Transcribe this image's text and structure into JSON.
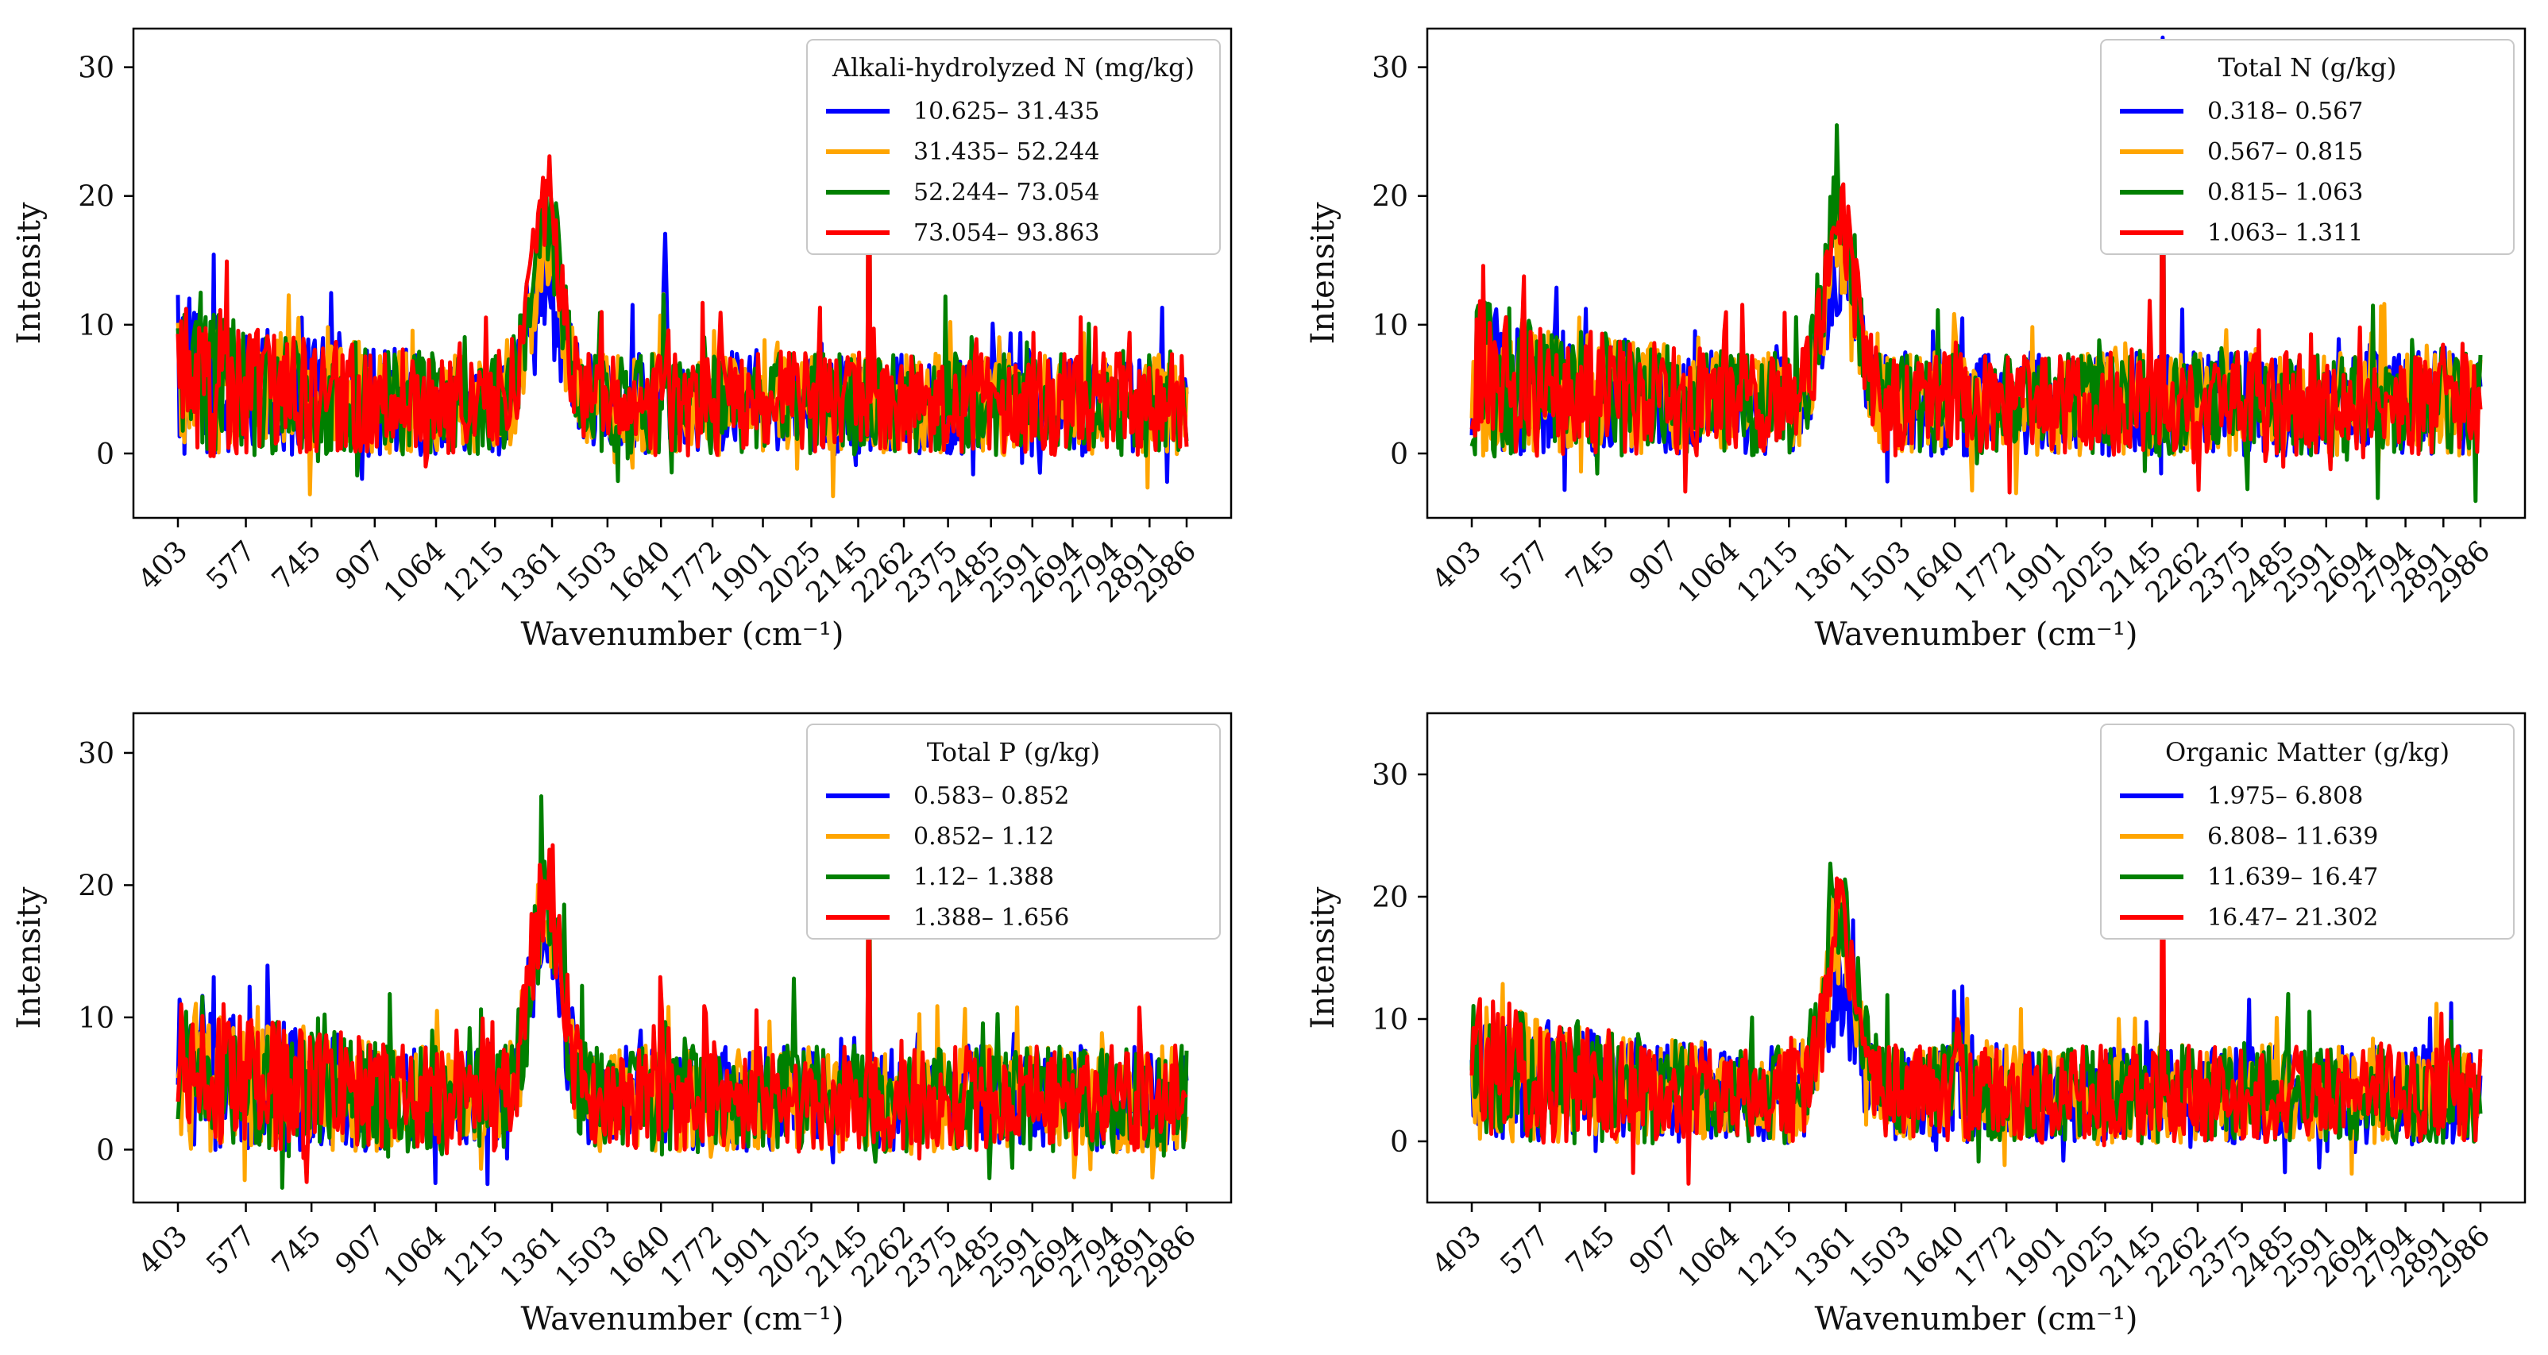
{
  "figure": {
    "xlabel": "Wavenumber (cm⁻¹)",
    "ylabel": "Intensity"
  },
  "chart_data": [
    {
      "type": "line",
      "title": "",
      "xlabel": "Wavenumber (cm⁻¹)",
      "ylabel": "Intensity",
      "xlim": [
        403,
        2986
      ],
      "ylim": [
        -5,
        33
      ],
      "xticks": [
        403,
        577,
        745,
        907,
        1064,
        1215,
        1361,
        1503,
        1640,
        1772,
        1901,
        2025,
        2145,
        2262,
        2375,
        2485,
        2591,
        2694,
        2794,
        2891,
        2986
      ],
      "yticks": [
        0,
        10,
        20,
        30
      ],
      "legend_title": "Alkali-hydrolyzed N (mg/kg)",
      "legend_position": "top-right",
      "base_max": 9.5,
      "series": [
        {
          "name": "10.625– 31.435",
          "color": "#0000ff",
          "seed": 11,
          "hump": 14.2,
          "spike": 6.5
        },
        {
          "name": "31.435– 52.244",
          "color": "#ffa500",
          "seed": 23,
          "hump": 18.0,
          "spike": 6.8
        },
        {
          "name": "52.244– 73.054",
          "color": "#008000",
          "seed": 37,
          "hump": 20.5,
          "spike": 31.5
        },
        {
          "name": "73.054– 93.863",
          "color": "#ff0000",
          "seed": 51,
          "hump": 22.0,
          "spike": 31.0
        }
      ]
    },
    {
      "type": "line",
      "title": "",
      "xlabel": "Wavenumber (cm⁻¹)",
      "ylabel": "Intensity",
      "xlim": [
        403,
        2986
      ],
      "ylim": [
        -5,
        33
      ],
      "xticks": [
        403,
        577,
        745,
        907,
        1064,
        1215,
        1361,
        1503,
        1640,
        1772,
        1901,
        2025,
        2145,
        2262,
        2375,
        2485,
        2591,
        2694,
        2794,
        2891,
        2986
      ],
      "yticks": [
        0,
        10,
        20,
        30
      ],
      "legend_title": "Total N (g/kg)",
      "legend_position": "top-right",
      "base_max": 9.5,
      "series": [
        {
          "name": "0.318– 0.567",
          "color": "#0000ff",
          "seed": 13,
          "hump": 17.0,
          "spike": 32.3
        },
        {
          "name": "0.567– 0.815",
          "color": "#ffa500",
          "seed": 29,
          "hump": 18.5,
          "spike": 31.5
        },
        {
          "name": "0.815– 1.063",
          "color": "#008000",
          "seed": 41,
          "hump": 22.0,
          "spike": 32.0
        },
        {
          "name": "1.063– 1.311",
          "color": "#ff0000",
          "seed": 57,
          "hump": 19.5,
          "spike": 27.5
        }
      ]
    },
    {
      "type": "line",
      "title": "",
      "xlabel": "Wavenumber (cm⁻¹)",
      "ylabel": "Intensity",
      "xlim": [
        403,
        2986
      ],
      "ylim": [
        -4,
        33
      ],
      "xticks": [
        403,
        577,
        745,
        907,
        1064,
        1215,
        1361,
        1503,
        1640,
        1772,
        1901,
        2025,
        2145,
        2262,
        2375,
        2485,
        2591,
        2694,
        2794,
        2891,
        2986
      ],
      "yticks": [
        0,
        10,
        20,
        30
      ],
      "legend_title": "Total P (g/kg)",
      "legend_position": "top-right",
      "base_max": 9.5,
      "series": [
        {
          "name": "0.583– 0.852",
          "color": "#0000ff",
          "seed": 17,
          "hump": 19.0,
          "spike": 8.0
        },
        {
          "name": "0.852– 1.12",
          "color": "#ffa500",
          "seed": 31,
          "hump": 20.5,
          "spike": 32.0
        },
        {
          "name": "1.12– 1.388",
          "color": "#008000",
          "seed": 43,
          "hump": 20.0,
          "spike": 30.0
        },
        {
          "name": "1.388– 1.656",
          "color": "#ff0000",
          "seed": 59,
          "hump": 21.5,
          "spike": 23.0
        }
      ]
    },
    {
      "type": "line",
      "title": "",
      "xlabel": "Wavenumber (cm⁻¹)",
      "ylabel": "Intensity",
      "xlim": [
        403,
        2986
      ],
      "ylim": [
        -5,
        35
      ],
      "xticks": [
        403,
        577,
        745,
        907,
        1064,
        1215,
        1361,
        1503,
        1640,
        1772,
        1901,
        2025,
        2145,
        2262,
        2375,
        2485,
        2591,
        2694,
        2794,
        2891,
        2986
      ],
      "yticks": [
        0,
        10,
        20,
        30
      ],
      "legend_title": "Organic Matter (g/kg)",
      "legend_position": "top-right",
      "base_max": 9.5,
      "series": [
        {
          "name": "1.975– 6.808",
          "color": "#0000ff",
          "seed": 19,
          "hump": 14.5,
          "spike": 6.5
        },
        {
          "name": "6.808– 11.639",
          "color": "#ffa500",
          "seed": 33,
          "hump": 18.5,
          "spike": 8.5
        },
        {
          "name": "11.639– 16.47",
          "color": "#008000",
          "seed": 47,
          "hump": 21.5,
          "spike": 7.5
        },
        {
          "name": "16.47– 21.302",
          "color": "#ff0000",
          "seed": 61,
          "hump": 20.5,
          "spike": 33.5
        }
      ]
    }
  ]
}
